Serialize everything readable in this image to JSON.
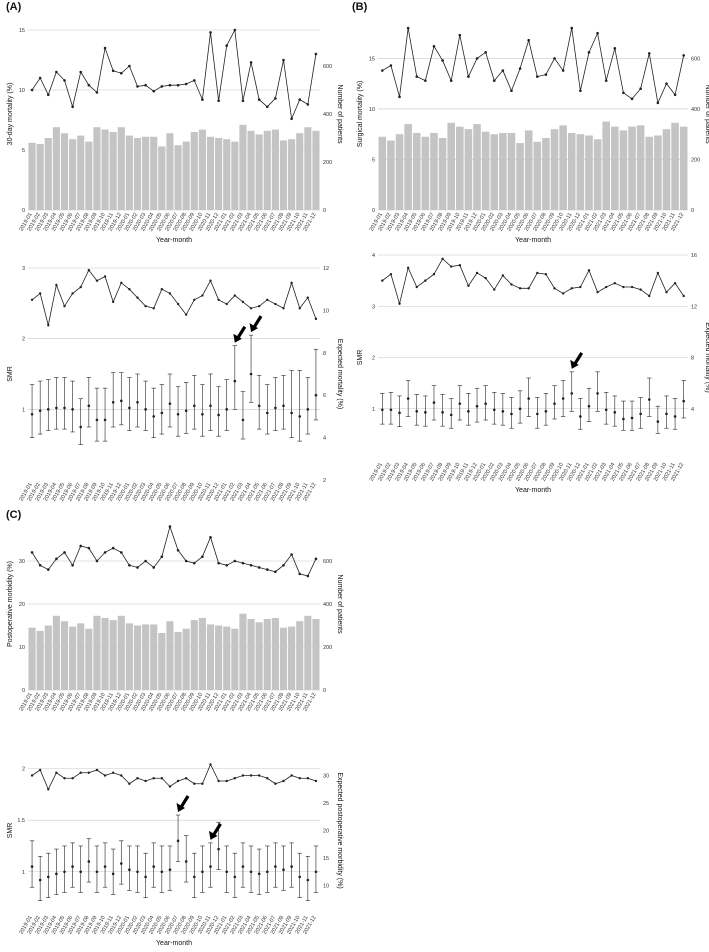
{
  "months": [
    "2019-01",
    "2019-02",
    "2019-03",
    "2019-04",
    "2019-05",
    "2019-06",
    "2019-07",
    "2019-08",
    "2019-09",
    "2019-10",
    "2019-11",
    "2019-12",
    "2020-01",
    "2020-02",
    "2020-03",
    "2020-04",
    "2020-05",
    "2020-06",
    "2020-07",
    "2020-08",
    "2020-09",
    "2020-10",
    "2020-11",
    "2020-12",
    "2021-01",
    "2021-02",
    "2021-03",
    "2021-04",
    "2021-05",
    "2021-06",
    "2021-07",
    "2021-08",
    "2021-09",
    "2021-10",
    "2021-11",
    "2021-12"
  ],
  "colors": {
    "bar": "#c4c4c4",
    "line": "#222222",
    "grid": "#c8c8c8",
    "arrow": "#000000"
  },
  "chart_data": [
    {
      "id": "A-top",
      "panel_label": "(A)",
      "type": "bar+line",
      "xlabel": "Year-month",
      "ylabel": "30-day mortality (%)",
      "ylabel_right": "Number of patients",
      "ylim": [
        0,
        16
      ],
      "yticks": [
        0,
        5,
        10,
        15
      ],
      "y2lim": [
        0,
        800
      ],
      "y2ticks": [
        0,
        200,
        400,
        600
      ],
      "bars": [
        280,
        275,
        300,
        345,
        320,
        295,
        310,
        285,
        345,
        335,
        325,
        345,
        310,
        300,
        305,
        305,
        265,
        320,
        270,
        285,
        325,
        335,
        305,
        300,
        295,
        285,
        355,
        330,
        315,
        330,
        335,
        290,
        295,
        320,
        345,
        330
      ],
      "line": [
        10,
        11,
        9.6,
        11.5,
        10.8,
        8.6,
        11.5,
        10.4,
        9.8,
        13.5,
        11.6,
        11.4,
        12,
        10.3,
        10.4,
        9.9,
        10.3,
        10.4,
        10.4,
        10.5,
        10.8,
        9.2,
        14.8,
        9.1,
        13.7,
        15,
        9.1,
        12.3,
        9.2,
        8.6,
        9.3,
        12.5,
        7.6,
        9.2,
        8.8,
        13
      ]
    },
    {
      "id": "A-bottom",
      "type": "errorbar+line",
      "xlabel": "",
      "ylabel": "SMR",
      "ylabel_right": "Expected mortality (%)",
      "ylim": [
        0.0,
        3.0
      ],
      "yticks": [
        1,
        2,
        3
      ],
      "y2lim": [
        2,
        12
      ],
      "y2ticks": [
        2,
        4,
        6,
        8,
        10,
        12
      ],
      "smr": [
        0.93,
        0.98,
        1.0,
        1.02,
        1.02,
        1.0,
        0.75,
        1.05,
        0.85,
        0.85,
        1.1,
        1.12,
        1.02,
        1.1,
        1.0,
        0.9,
        0.95,
        1.08,
        0.93,
        0.98,
        1.05,
        0.93,
        1.05,
        0.92,
        1.0,
        1.4,
        0.85,
        1.5,
        1.05,
        0.95,
        1.02,
        1.05,
        0.95,
        0.9,
        1.0,
        1.2
      ],
      "lower": [
        0.6,
        0.65,
        0.7,
        0.72,
        0.72,
        0.68,
        0.5,
        0.75,
        0.55,
        0.55,
        0.75,
        0.78,
        0.7,
        0.75,
        0.7,
        0.6,
        0.65,
        0.75,
        0.62,
        0.66,
        0.72,
        0.62,
        0.7,
        0.62,
        0.7,
        1.0,
        0.58,
        1.1,
        0.72,
        0.65,
        0.7,
        0.72,
        0.6,
        0.55,
        0.65,
        0.85
      ],
      "upper": [
        1.35,
        1.4,
        1.42,
        1.45,
        1.45,
        1.4,
        1.15,
        1.45,
        1.3,
        1.3,
        1.52,
        1.52,
        1.45,
        1.5,
        1.4,
        1.3,
        1.35,
        1.5,
        1.32,
        1.38,
        1.48,
        1.35,
        1.5,
        1.32,
        1.42,
        1.9,
        1.25,
        2.05,
        1.48,
        1.35,
        1.45,
        1.48,
        1.55,
        1.55,
        1.45,
        1.85
      ],
      "expected": [
        10.5,
        10.8,
        9.3,
        11.2,
        10.2,
        10.8,
        11.1,
        11.9,
        11.4,
        11.6,
        10.4,
        11.3,
        11,
        10.6,
        10.2,
        10.1,
        11,
        10.8,
        10.3,
        9.8,
        10.5,
        10.7,
        11.4,
        10.5,
        10.3,
        10.7,
        10.4,
        10.1,
        10.2,
        10.5,
        10.3,
        10.1,
        11.3,
        10.1,
        10.6,
        9.6
      ],
      "arrows_at": [
        25,
        27
      ]
    },
    {
      "id": "B-top",
      "panel_label": "(B)",
      "type": "bar+line",
      "xlabel": "Year-month",
      "ylabel": "Surgical mortality (%)",
      "ylabel_right": "Number of patients",
      "ylim": [
        0,
        19
      ],
      "yticks": [
        0,
        5,
        10,
        15
      ],
      "y2lim": [
        0,
        760
      ],
      "y2ticks": [
        0,
        200,
        400,
        600
      ],
      "bars": [
        290,
        275,
        300,
        340,
        305,
        290,
        305,
        285,
        345,
        330,
        320,
        340,
        310,
        300,
        305,
        305,
        265,
        315,
        270,
        285,
        320,
        335,
        305,
        300,
        295,
        280,
        350,
        330,
        315,
        330,
        335,
        290,
        295,
        320,
        345,
        330
      ],
      "line": [
        13.8,
        14.3,
        11.2,
        18,
        13.2,
        12.8,
        16.2,
        14.8,
        12.8,
        17.3,
        13.2,
        15,
        15.6,
        12.8,
        13.8,
        11.8,
        14,
        16.8,
        13.2,
        13.4,
        15,
        13.8,
        18,
        11.8,
        15.6,
        17.5,
        12.8,
        16,
        11.6,
        11,
        12,
        15.5,
        10.6,
        12.5,
        11.4,
        15.3
      ]
    },
    {
      "id": "B-bottom",
      "type": "errorbar+line",
      "xlabel": "Year-month",
      "ylabel": "SMR",
      "ylabel_right": "Expected mortality (%)",
      "ylim": [
        0,
        4
      ],
      "yticks": [
        1,
        2,
        3,
        4
      ],
      "y2lim": [
        0,
        16
      ],
      "y2ticks": [
        4,
        8,
        12,
        16
      ],
      "smr": [
        0.98,
        0.98,
        0.92,
        1.2,
        0.95,
        0.93,
        1.12,
        0.93,
        0.88,
        1.1,
        0.95,
        1.05,
        1.1,
        0.98,
        0.95,
        0.9,
        1.0,
        1.2,
        0.9,
        0.95,
        1.1,
        1.2,
        1.3,
        0.85,
        1.05,
        1.3,
        0.98,
        0.93,
        0.8,
        0.82,
        0.9,
        1.18,
        0.75,
        0.9,
        0.85,
        1.15
      ],
      "lower": [
        0.7,
        0.7,
        0.65,
        0.85,
        0.68,
        0.66,
        0.78,
        0.66,
        0.62,
        0.78,
        0.68,
        0.74,
        0.78,
        0.7,
        0.68,
        0.62,
        0.72,
        0.85,
        0.62,
        0.68,
        0.8,
        0.85,
        0.95,
        0.6,
        0.75,
        0.95,
        0.7,
        0.66,
        0.58,
        0.58,
        0.62,
        0.85,
        0.52,
        0.62,
        0.6,
        0.82
      ],
      "upper": [
        1.3,
        1.32,
        1.25,
        1.55,
        1.28,
        1.25,
        1.45,
        1.28,
        1.2,
        1.45,
        1.3,
        1.4,
        1.45,
        1.32,
        1.3,
        1.22,
        1.35,
        1.6,
        1.22,
        1.3,
        1.45,
        1.55,
        1.72,
        1.2,
        1.4,
        1.72,
        1.32,
        1.25,
        1.15,
        1.15,
        1.22,
        1.6,
        1.05,
        1.25,
        1.2,
        1.55
      ],
      "expected": [
        14,
        14.5,
        12.2,
        15,
        13.5,
        14,
        14.5,
        15.7,
        15.1,
        15.2,
        13.6,
        14.6,
        14.2,
        13.3,
        14.4,
        13.7,
        13.4,
        13.4,
        14.6,
        14.5,
        13.4,
        13,
        13.4,
        13.5,
        14.8,
        13.1,
        13.5,
        13.8,
        13.5,
        13.5,
        13.3,
        12.8,
        14.6,
        13.1,
        13.8,
        12.8
      ],
      "arrows_at": [
        22
      ]
    },
    {
      "id": "C-top",
      "panel_label": "(C)",
      "type": "bar+line",
      "xlabel": "",
      "ylabel": "Postoperative morbidity (%)",
      "ylabel_right": "Number of patients",
      "ylim": [
        0,
        40
      ],
      "yticks": [
        0,
        10,
        20,
        30
      ],
      "y2lim": [
        0,
        800
      ],
      "y2ticks": [
        0,
        200,
        400,
        600
      ],
      "bars": [
        290,
        275,
        300,
        345,
        320,
        295,
        310,
        285,
        345,
        335,
        325,
        345,
        310,
        300,
        305,
        305,
        265,
        320,
        270,
        285,
        325,
        335,
        305,
        300,
        295,
        285,
        355,
        330,
        315,
        330,
        335,
        290,
        295,
        320,
        345,
        330
      ],
      "line": [
        32,
        29,
        28,
        30.5,
        32,
        29,
        33.5,
        33,
        30,
        32,
        33,
        32,
        29,
        28.5,
        30,
        28.5,
        31,
        38,
        32.5,
        30,
        29.5,
        31,
        35.5,
        29.5,
        29,
        30,
        29.5,
        29,
        28.5,
        28,
        27.5,
        29,
        31.5,
        27,
        26.5,
        30.5
      ]
    },
    {
      "id": "C-bottom",
      "type": "errorbar+line",
      "xlabel": "Year-month",
      "ylabel": "SMR",
      "ylabel_right": "Expected postoperative morbidity (%)",
      "ylim": [
        0.6,
        2.2
      ],
      "yticks": [
        1.0,
        1.5,
        2.0
      ],
      "y2lim": [
        5,
        35
      ],
      "y2ticks": [
        10,
        15,
        20,
        25,
        30
      ],
      "smr": [
        1.05,
        0.92,
        0.95,
        0.98,
        1.0,
        1.05,
        1.0,
        1.1,
        1.0,
        1.05,
        0.98,
        1.08,
        1.02,
        1.0,
        0.95,
        1.05,
        1.0,
        1.02,
        1.3,
        1.1,
        0.95,
        1.0,
        1.05,
        1.22,
        1.0,
        0.95,
        1.05,
        1.0,
        0.98,
        1.0,
        1.05,
        1.02,
        1.05,
        0.95,
        0.92,
        1.0
      ],
      "lower": [
        0.85,
        0.72,
        0.75,
        0.78,
        0.8,
        0.85,
        0.8,
        0.9,
        0.8,
        0.85,
        0.78,
        0.88,
        0.82,
        0.8,
        0.75,
        0.85,
        0.8,
        0.82,
        1.1,
        0.9,
        0.75,
        0.8,
        0.85,
        1.02,
        0.8,
        0.75,
        0.85,
        0.8,
        0.78,
        0.8,
        0.85,
        0.82,
        0.85,
        0.75,
        0.72,
        0.8
      ],
      "upper": [
        1.3,
        1.15,
        1.18,
        1.22,
        1.25,
        1.28,
        1.25,
        1.32,
        1.25,
        1.28,
        1.22,
        1.3,
        1.25,
        1.25,
        1.18,
        1.28,
        1.25,
        1.25,
        1.55,
        1.35,
        1.18,
        1.25,
        1.28,
        1.48,
        1.25,
        1.18,
        1.28,
        1.25,
        1.22,
        1.25,
        1.28,
        1.25,
        1.28,
        1.18,
        1.15,
        1.25
      ],
      "expected": [
        30,
        31,
        27.5,
        30.5,
        29.5,
        29.5,
        30.5,
        30.5,
        31,
        30,
        30.5,
        30,
        28.5,
        29.5,
        29,
        29.5,
        29.5,
        28,
        29,
        29.5,
        28.5,
        28.5,
        32,
        29,
        29,
        29.5,
        30,
        30,
        30,
        29.5,
        28.5,
        29,
        30,
        29.5,
        29.5,
        29
      ],
      "arrows_at": [
        18,
        22
      ]
    }
  ]
}
